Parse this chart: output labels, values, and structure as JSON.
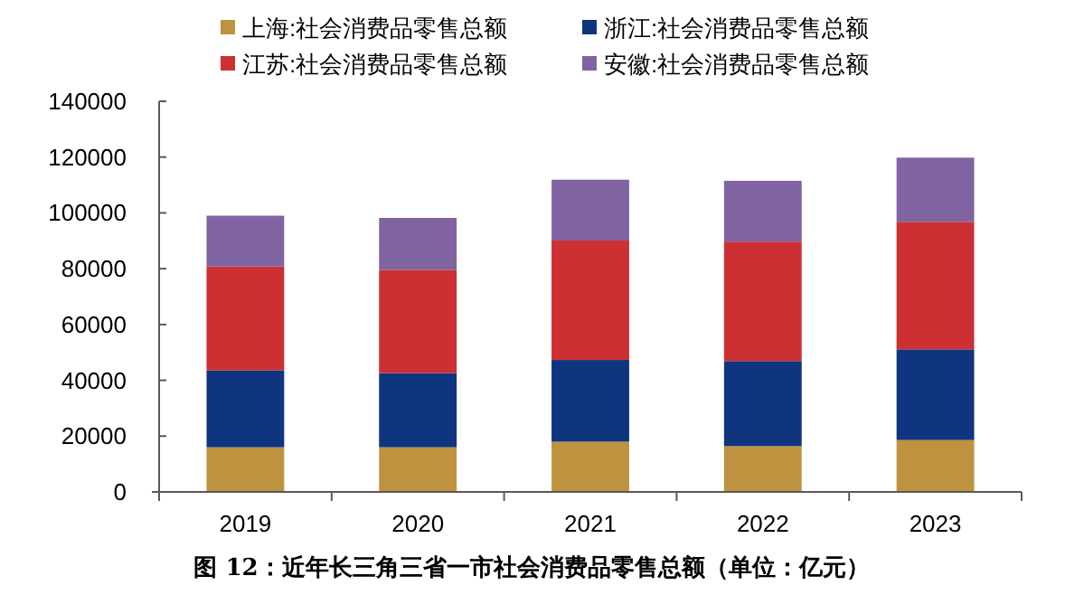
{
  "chart_data": {
    "type": "bar",
    "stacked": true,
    "title": "图 12：近年长三角三省一市社会消费品零售总额（单位：亿元）",
    "categories": [
      "2019",
      "2020",
      "2021",
      "2022",
      "2023"
    ],
    "series": [
      {
        "name": "上海:社会消费品零售总额",
        "color": "#bf9240",
        "values": [
          16000,
          16000,
          18000,
          16400,
          18600
        ]
      },
      {
        "name": "浙江:社会消费品零售总额",
        "color": "#10357f",
        "values": [
          27600,
          26600,
          29300,
          30500,
          32500
        ]
      },
      {
        "name": "江苏:社会消费品零售总额",
        "color": "#cc3033",
        "values": [
          37200,
          37000,
          42800,
          42800,
          45700
        ]
      },
      {
        "name": "安徽:社会消费品零售总额",
        "color": "#8064a2",
        "values": [
          18200,
          18600,
          21800,
          21800,
          23000
        ]
      }
    ],
    "ylim": [
      0,
      140000
    ],
    "yticks": [
      0,
      20000,
      40000,
      60000,
      80000,
      100000,
      120000,
      140000
    ],
    "legend": "top",
    "grid": false
  }
}
